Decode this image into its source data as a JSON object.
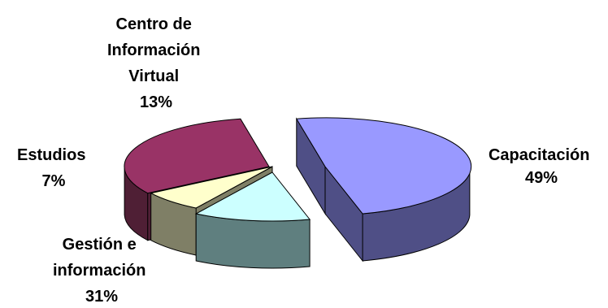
{
  "chart_data": {
    "type": "pie",
    "style": "3d-exploded",
    "title": "",
    "slices": [
      {
        "label_lines": [
          "Capacitación",
          "49%"
        ],
        "value": 49,
        "top_color": "#9999ff",
        "side_color": "#4f4f86"
      },
      {
        "label_lines": [
          "Gestión e",
          "información",
          "31%"
        ],
        "value": 31,
        "top_color": "#993366",
        "side_color": "#4f1f35"
      },
      {
        "label_lines": [
          "Estudios",
          "7%"
        ],
        "value": 7,
        "top_color": "#ffffcc",
        "side_color": "#7f7f66"
      },
      {
        "label_lines": [
          "Centro de",
          "Información",
          "Virtual",
          "13%"
        ],
        "value": 13,
        "top_color": "#ccffff",
        "side_color": "#5f7f7f"
      }
    ],
    "legend": "none"
  }
}
